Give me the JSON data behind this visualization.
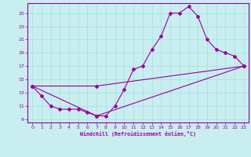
{
  "xlabel": "Windchill (Refroidissement éolien,°C)",
  "bg_color": "#c8eef0",
  "grid_color": "#aadddd",
  "line_color": "#990099",
  "xlim": [
    -0.5,
    23.5
  ],
  "ylim": [
    8.5,
    26.5
  ],
  "xticks": [
    0,
    1,
    2,
    3,
    4,
    5,
    6,
    7,
    8,
    9,
    10,
    11,
    12,
    13,
    14,
    15,
    16,
    17,
    18,
    19,
    20,
    21,
    22,
    23
  ],
  "yticks": [
    9,
    11,
    13,
    15,
    17,
    19,
    21,
    23,
    25
  ],
  "line1_x": [
    0,
    1,
    2,
    3,
    4,
    5,
    6,
    7,
    8,
    9,
    10,
    11,
    12,
    13,
    14,
    15,
    16,
    17,
    18,
    19,
    20,
    21,
    22,
    23
  ],
  "line1_y": [
    14,
    12.5,
    11,
    10.5,
    10.5,
    10.5,
    10,
    9.5,
    9.5,
    11,
    13.5,
    16.5,
    17,
    19.5,
    21.5,
    25,
    25,
    26,
    24.5,
    21,
    19.5,
    19,
    18.5,
    17
  ],
  "line2_x": [
    0,
    7,
    23
  ],
  "line2_y": [
    14,
    14,
    17
  ],
  "line3_x": [
    0,
    7,
    23
  ],
  "line3_y": [
    14,
    9.5,
    17
  ],
  "marker": "D",
  "ms": 2.0,
  "lw": 0.8
}
